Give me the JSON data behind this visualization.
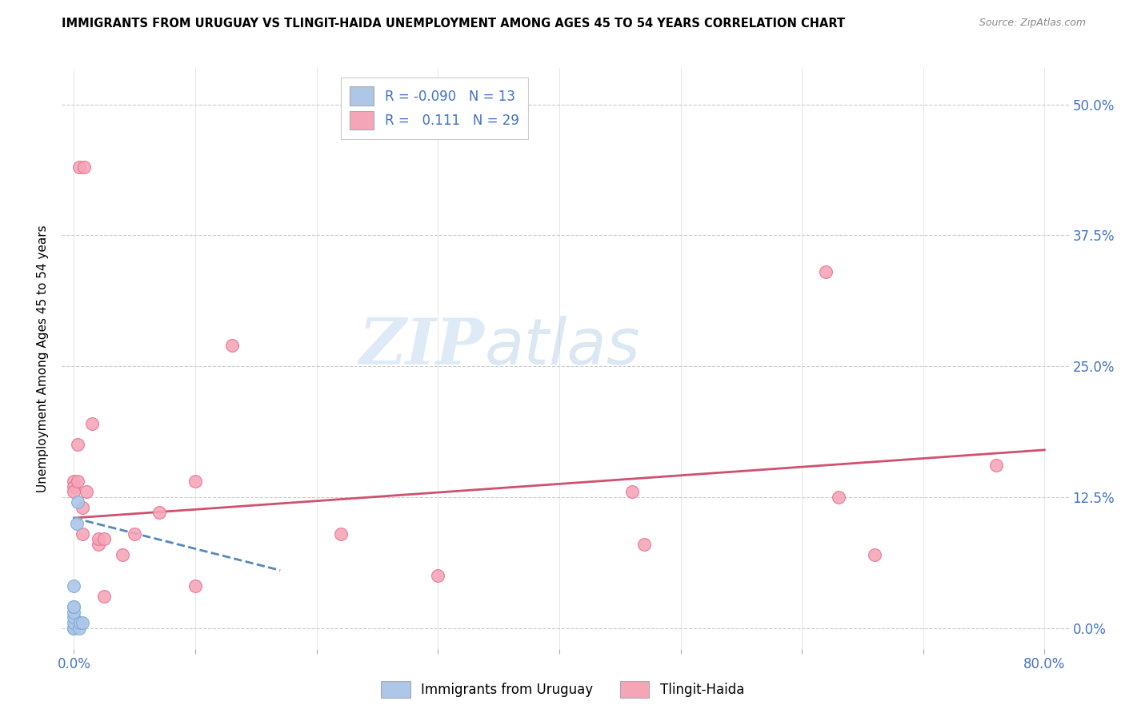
{
  "title": "IMMIGRANTS FROM URUGUAY VS TLINGIT-HAIDA UNEMPLOYMENT AMONG AGES 45 TO 54 YEARS CORRELATION CHART",
  "source": "Source: ZipAtlas.com",
  "xlabel_ticks": [
    "0.0%",
    "",
    "",
    "",
    "",
    "",
    "",
    "",
    "80.0%"
  ],
  "xlabel_vals": [
    0.0,
    0.1,
    0.2,
    0.3,
    0.4,
    0.5,
    0.6,
    0.7,
    0.8
  ],
  "ylabel_ticks": [
    "0.0%",
    "12.5%",
    "25.0%",
    "37.5%",
    "50.0%"
  ],
  "ylabel_vals": [
    0.0,
    0.125,
    0.25,
    0.375,
    0.5
  ],
  "xlim": [
    -0.01,
    0.82
  ],
  "ylim": [
    -0.02,
    0.535
  ],
  "blue_R": -0.09,
  "blue_N": 13,
  "pink_R": 0.111,
  "pink_N": 29,
  "blue_points_x": [
    0.0,
    0.0,
    0.0,
    0.0,
    0.0,
    0.0,
    0.0,
    0.0,
    0.002,
    0.003,
    0.004,
    0.005,
    0.007
  ],
  "blue_points_y": [
    0.0,
    0.0,
    0.005,
    0.01,
    0.015,
    0.02,
    0.02,
    0.04,
    0.1,
    0.12,
    0.0,
    0.005,
    0.005
  ],
  "pink_points_x": [
    0.004,
    0.008,
    0.0,
    0.0,
    0.0,
    0.003,
    0.003,
    0.007,
    0.007,
    0.01,
    0.015,
    0.02,
    0.02,
    0.025,
    0.025,
    0.04,
    0.05,
    0.07,
    0.1,
    0.1,
    0.13,
    0.22,
    0.3,
    0.46,
    0.47,
    0.62,
    0.63,
    0.66,
    0.76
  ],
  "pink_points_y": [
    0.44,
    0.44,
    0.14,
    0.135,
    0.13,
    0.175,
    0.14,
    0.115,
    0.09,
    0.13,
    0.195,
    0.08,
    0.085,
    0.085,
    0.03,
    0.07,
    0.09,
    0.11,
    0.04,
    0.14,
    0.27,
    0.09,
    0.05,
    0.13,
    0.08,
    0.34,
    0.125,
    0.07,
    0.155
  ],
  "blue_line_x": [
    0.0,
    0.17
  ],
  "blue_line_y": [
    0.105,
    0.055
  ],
  "pink_line_x": [
    0.0,
    0.8
  ],
  "pink_line_y": [
    0.105,
    0.17
  ],
  "blue_color": "#aec6e8",
  "blue_edge_color": "#7aaed6",
  "pink_color": "#f4a6b8",
  "pink_edge_color": "#e87090",
  "blue_line_color": "#5588bb",
  "pink_line_color": "#d05070",
  "marker_size": 130,
  "watermark_color": "#c8ddf0",
  "legend_label_blue": "Immigrants from Uruguay",
  "legend_label_pink": "Tlingit-Haida"
}
